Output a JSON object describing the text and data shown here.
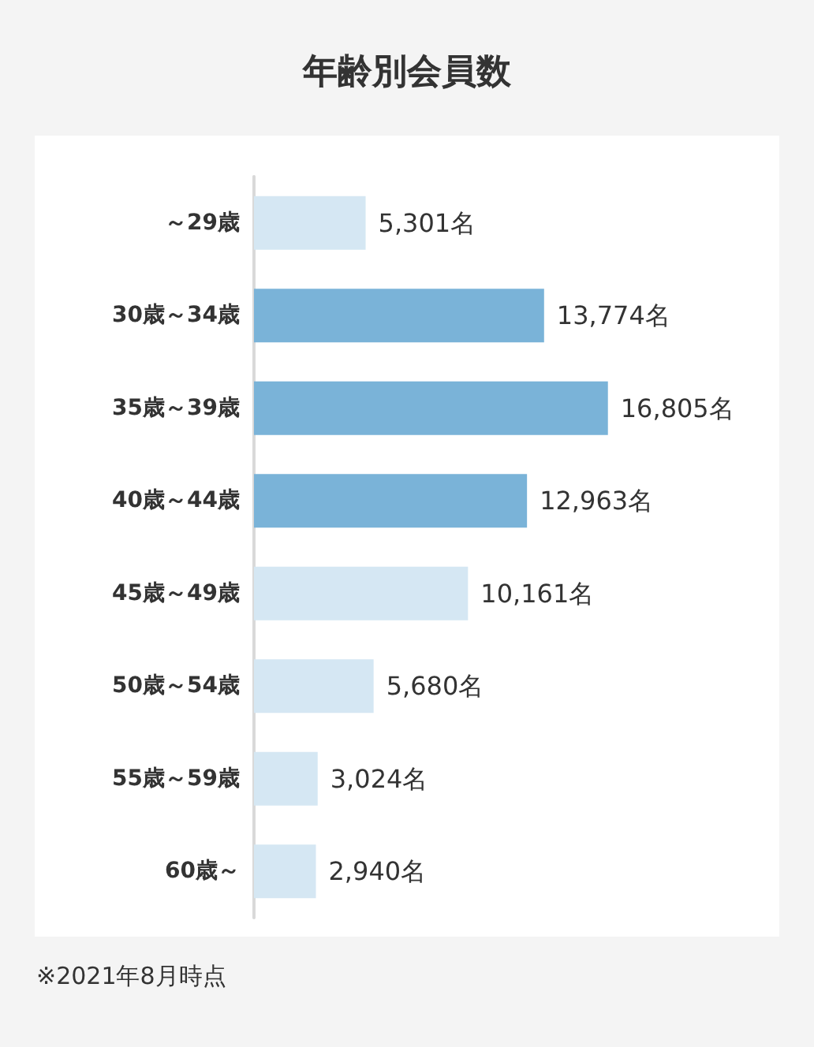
{
  "chart_data": {
    "type": "bar",
    "orientation": "horizontal",
    "title": "年齢別会員数",
    "categories": [
      "～29歳",
      "30歳～34歳",
      "35歳～39歳",
      "40歳～44歳",
      "45歳～49歳",
      "50歳～54歳",
      "55歳～59歳",
      "60歳～"
    ],
    "values": [
      5301,
      13774,
      16805,
      12963,
      10161,
      5680,
      3024,
      2940
    ],
    "colors": [
      "#d5e7f3",
      "#7ab3d8",
      "#7ab3d8",
      "#7ab3d8",
      "#d5e7f3",
      "#d5e7f3",
      "#d5e7f3",
      "#d5e7f3"
    ],
    "value_labels": [
      "5,301名",
      "13,774名",
      "16,805名",
      "12,963名",
      "10,161名",
      "5,680名",
      "3,024名",
      "2,940名"
    ],
    "tick_labels": "y",
    "annotations": [
      "※2021年8月時点"
    ]
  }
}
